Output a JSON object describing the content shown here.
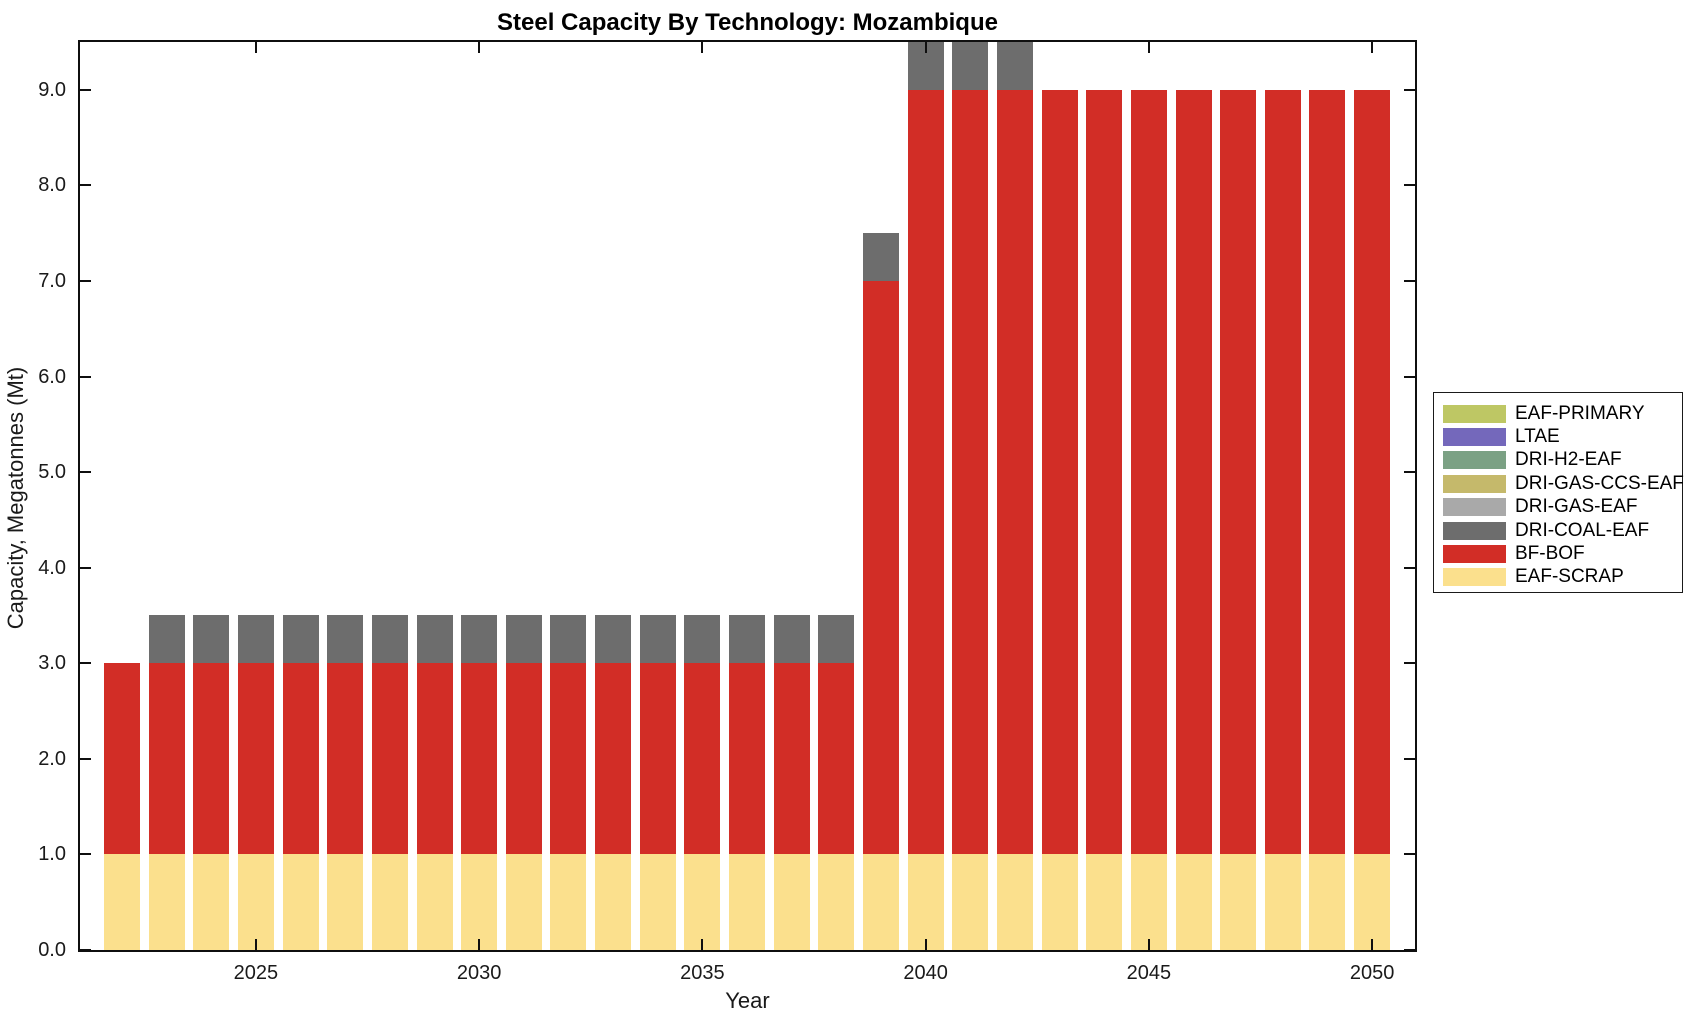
{
  "chart_data": {
    "type": "bar",
    "stacked": true,
    "title": "Steel Capacity By Technology: Mozambique",
    "xlabel": "Year",
    "ylabel": "Capacity, Megatonnes (Mt)",
    "x": [
      2022,
      2023,
      2024,
      2025,
      2026,
      2027,
      2028,
      2029,
      2030,
      2031,
      2032,
      2033,
      2034,
      2035,
      2036,
      2037,
      2038,
      2039,
      2040,
      2041,
      2042,
      2043,
      2044,
      2045,
      2046,
      2047,
      2048,
      2049,
      2050
    ],
    "series": [
      {
        "name": "EAF-SCRAP",
        "color": "#fbe08d",
        "values": [
          1,
          1,
          1,
          1,
          1,
          1,
          1,
          1,
          1,
          1,
          1,
          1,
          1,
          1,
          1,
          1,
          1,
          1,
          1,
          1,
          1,
          1,
          1,
          1,
          1,
          1,
          1,
          1,
          1
        ]
      },
      {
        "name": "BF-BOF",
        "color": "#d22d26",
        "values": [
          2,
          2,
          2,
          2,
          2,
          2,
          2,
          2,
          2,
          2,
          2,
          2,
          2,
          2,
          2,
          2,
          2,
          6,
          8,
          8,
          8,
          8,
          8,
          8,
          8,
          8,
          8,
          8,
          8
        ]
      },
      {
        "name": "DRI-COAL-EAF",
        "color": "#6d6d6d",
        "values": [
          0,
          0.5,
          0.5,
          0.5,
          0.5,
          0.5,
          0.5,
          0.5,
          0.5,
          0.5,
          0.5,
          0.5,
          0.5,
          0.5,
          0.5,
          0.5,
          0.5,
          0.5,
          0.5,
          0.5,
          0.5,
          0,
          0,
          0,
          0,
          0,
          0,
          0,
          0
        ]
      }
    ],
    "bar_totals": [
      3,
      3.5,
      3.5,
      3.5,
      3.5,
      3.5,
      3.5,
      3.5,
      3.5,
      3.5,
      3.5,
      3.5,
      3.5,
      3.5,
      3.5,
      3.5,
      3.5,
      7.5,
      9.5,
      9.5,
      9.5,
      9,
      9,
      9,
      9,
      9,
      9,
      9,
      9
    ],
    "xlim": [
      2021.06,
      2050.96
    ],
    "ylim": [
      0,
      9.5
    ],
    "grid": false,
    "tick_direction": "in",
    "box": true,
    "x_ticks": [
      {
        "value": 2025,
        "label": "2025"
      },
      {
        "value": 2030,
        "label": "2030"
      },
      {
        "value": 2035,
        "label": "2035"
      },
      {
        "value": 2040,
        "label": "2040"
      },
      {
        "value": 2045,
        "label": "2045"
      },
      {
        "value": 2050,
        "label": "2050"
      }
    ],
    "y_ticks": [
      {
        "value": 0,
        "label": "0.0"
      },
      {
        "value": 1,
        "label": "1.0"
      },
      {
        "value": 2,
        "label": "2.0"
      },
      {
        "value": 3,
        "label": "3.0"
      },
      {
        "value": 4,
        "label": "4.0"
      },
      {
        "value": 5,
        "label": "5.0"
      },
      {
        "value": 6,
        "label": "6.0"
      },
      {
        "value": 7,
        "label": "7.0"
      },
      {
        "value": 8,
        "label": "8.0"
      },
      {
        "value": 9,
        "label": "9.0"
      }
    ],
    "legend_position": "outside-right"
  },
  "legend": {
    "items": [
      {
        "label": "EAF-PRIMARY",
        "color": "#bec764"
      },
      {
        "label": "LTAE",
        "color": "#7468bb"
      },
      {
        "label": "DRI-H2-EAF",
        "color": "#7ba184"
      },
      {
        "label": "DRI-GAS-CCS-EAF",
        "color": "#c5b96b"
      },
      {
        "label": "DRI-GAS-EAF",
        "color": "#a9a9a9"
      },
      {
        "label": "DRI-COAL-EAF",
        "color": "#6d6d6d"
      },
      {
        "label": "BF-BOF",
        "color": "#d22d26"
      },
      {
        "label": "EAF-SCRAP",
        "color": "#fbe08d"
      }
    ]
  }
}
